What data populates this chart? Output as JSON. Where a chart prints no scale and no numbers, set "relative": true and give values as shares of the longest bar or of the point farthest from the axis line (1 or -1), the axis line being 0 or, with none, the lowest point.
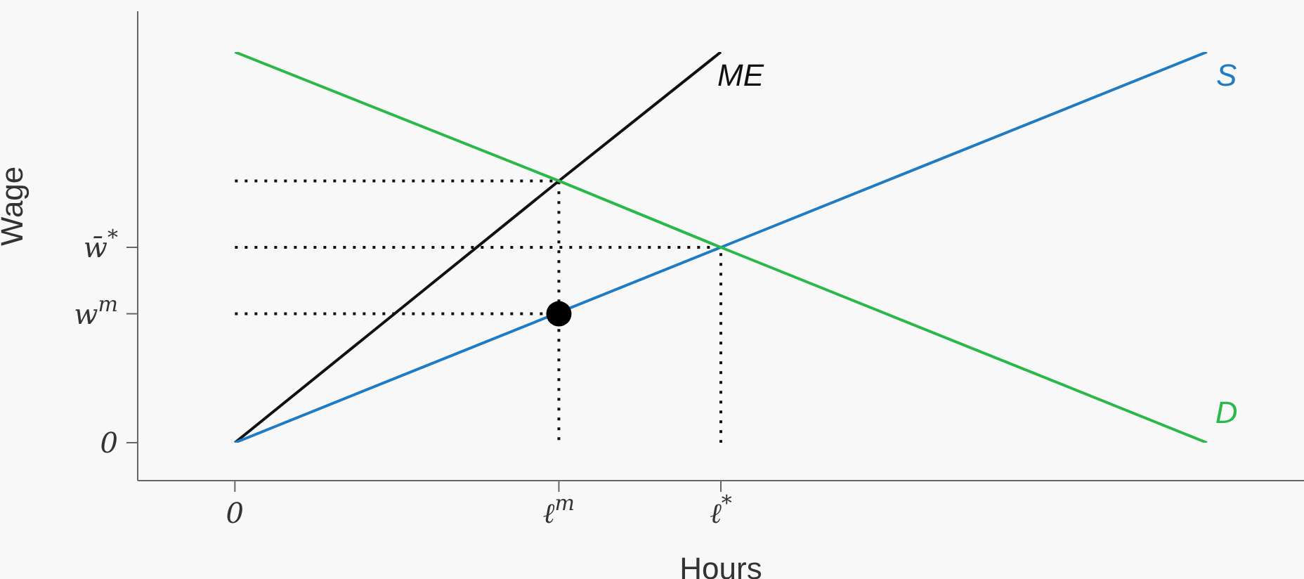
{
  "chart_data": {
    "type": "line",
    "xlabel": "Hours",
    "ylabel": "Wage",
    "relative": true,
    "categories": [
      "0",
      null,
      "ℓ$^{m}$",
      "ℓ$^{*}$",
      null,
      null,
      null
    ],
    "ref_lines": [
      {
        "axis": "y",
        "value": 0,
        "label": "0"
      },
      {
        "axis": "y",
        "value": 0.33,
        "label": "w$^{m}$"
      },
      {
        "axis": "y",
        "value": 0.5,
        "label": "w̄$^{*}$"
      }
    ],
    "marker": "none",
    "line_style": "solid",
    "series": [
      {
        "color": "#111111",
        "line_style": "dotted",
        "x": [
          "0",
          "ℓ$^{m}$",
          "ℓ$^{m}$"
        ],
        "values": [
          0.67,
          0.67,
          0
        ]
      },
      {
        "color": "#111111",
        "line_style": "dotted",
        "x": [
          "0",
          "ℓ$^{*}$",
          "ℓ$^{*}$"
        ],
        "values": [
          0.5,
          0.5,
          0
        ]
      },
      {
        "color": "#111111",
        "line_style": "dotted",
        "x": [
          "0",
          "ℓ$^{m}$"
        ],
        "values": [
          0.33,
          0.33
        ]
      },
      {
        "name": "ME",
        "color": "#111111",
        "values": [
          0,
          null,
          0.67,
          1,
          null,
          null,
          null
        ]
      },
      {
        "name": "S",
        "color": "#1f7bc4",
        "values": [
          0,
          null,
          null,
          0.5,
          null,
          null,
          1
        ]
      },
      {
        "name": "D",
        "color": "#2bb84a",
        "values": [
          1,
          null,
          0.67,
          0.5,
          null,
          null,
          0
        ]
      },
      {
        "type": "scatter",
        "marker": "circle",
        "color": "#000000",
        "x": [
          "ℓ$^{m}$"
        ],
        "values": [
          0.33
        ]
      }
    ]
  }
}
